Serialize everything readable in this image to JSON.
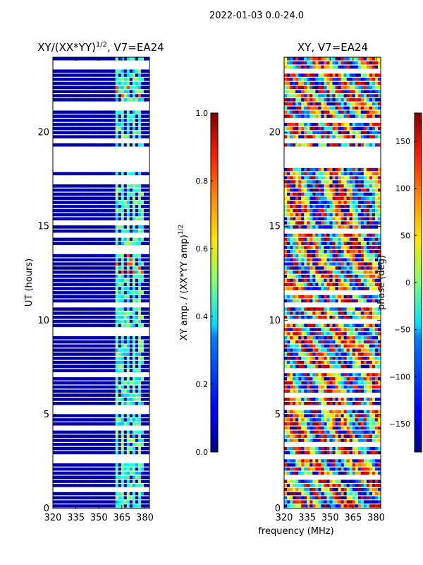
{
  "figure": {
    "suptitle": "2022-01-03 0.0-24.0",
    "shared_xlabel": "frequency (MHz)"
  },
  "chart_data": [
    {
      "type": "heatmap",
      "title_main": "XY/(XX*YY)",
      "title_sup": "1/2",
      "title_suffix": ", V7=EA24",
      "xlabel": "",
      "ylabel": "UT (hours)",
      "xlim": [
        320,
        383
      ],
      "ylim": [
        0,
        24
      ],
      "xticks": [
        320,
        335,
        350,
        365,
        380
      ],
      "yticks": [
        0,
        5,
        10,
        15,
        20
      ],
      "colorbar": {
        "label_main": "XY amp. / (XX*YY amp)",
        "label_sup": "1/2",
        "range": [
          0.0,
          1.0
        ],
        "ticks": [
          "0.0",
          "0.2",
          "0.4",
          "0.6",
          "0.8",
          "1.0"
        ],
        "colormap": "jet"
      },
      "flagged_ut_ranges": [
        [
          0.0,
          0.1
        ],
        [
          2.5,
          2.7
        ],
        [
          5.25,
          5.45
        ],
        [
          9.25,
          9.55
        ],
        [
          11.9,
          12.1
        ],
        [
          17.3,
          17.6
        ],
        [
          18.2,
          19.2
        ],
        [
          19.5,
          19.7
        ],
        [
          23.3,
          23.6
        ]
      ],
      "signal_band_mhz": [
        360,
        380
      ],
      "signal_level_typical": 0.3,
      "signal_level_peak": 0.8
    },
    {
      "type": "heatmap",
      "title_main": "XY, V7=EA24",
      "xlabel": "frequency (MHz)",
      "ylabel": "",
      "xlim": [
        320,
        383
      ],
      "ylim": [
        0,
        24
      ],
      "xticks": [
        320,
        335,
        350,
        365,
        380
      ],
      "yticks": [
        0,
        5,
        10,
        15,
        20
      ],
      "colorbar": {
        "label_main": "phase (deg)",
        "range": [
          -180,
          180
        ],
        "ticks": [
          "−150",
          "−100",
          "−50",
          "0",
          "50",
          "100",
          "150"
        ],
        "colormap": "jet"
      },
      "flagged_ut_ranges": [
        [
          0.0,
          0.1
        ],
        [
          2.7,
          2.75
        ],
        [
          5.25,
          5.35
        ],
        [
          9.3,
          9.4
        ],
        [
          17.6,
          17.7
        ],
        [
          18.2,
          19.1
        ],
        [
          19.5,
          19.6
        ]
      ]
    }
  ],
  "colors": {
    "background": "#ffffff",
    "masked": "#ffffff",
    "amplitude_floor": "#00008f"
  }
}
